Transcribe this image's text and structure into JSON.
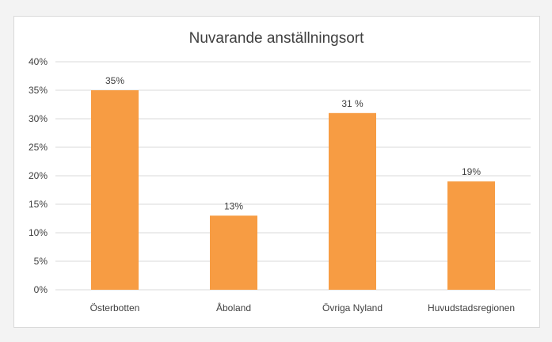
{
  "chart_data": {
    "type": "bar",
    "title": "Nuvarande anställningsort",
    "xlabel": "",
    "ylabel": "",
    "categories": [
      "Österbotten",
      "Åboland",
      "Övriga Nyland",
      "Huvudstadsregionen"
    ],
    "values": [
      35,
      13,
      31,
      19
    ],
    "data_labels": [
      "35%",
      "13%",
      "31 %",
      "19%"
    ],
    "ylim": [
      0,
      40
    ],
    "y_ticks": [
      0,
      5,
      10,
      15,
      20,
      25,
      30,
      35,
      40
    ],
    "y_tick_labels": [
      "0%",
      "5%",
      "10%",
      "15%",
      "20%",
      "25%",
      "30%",
      "35%",
      "40%"
    ],
    "grid": true,
    "legend": "none",
    "colors": {
      "bar": "#f79c43",
      "grid": "#d9d9d9",
      "text": "#404040"
    }
  }
}
